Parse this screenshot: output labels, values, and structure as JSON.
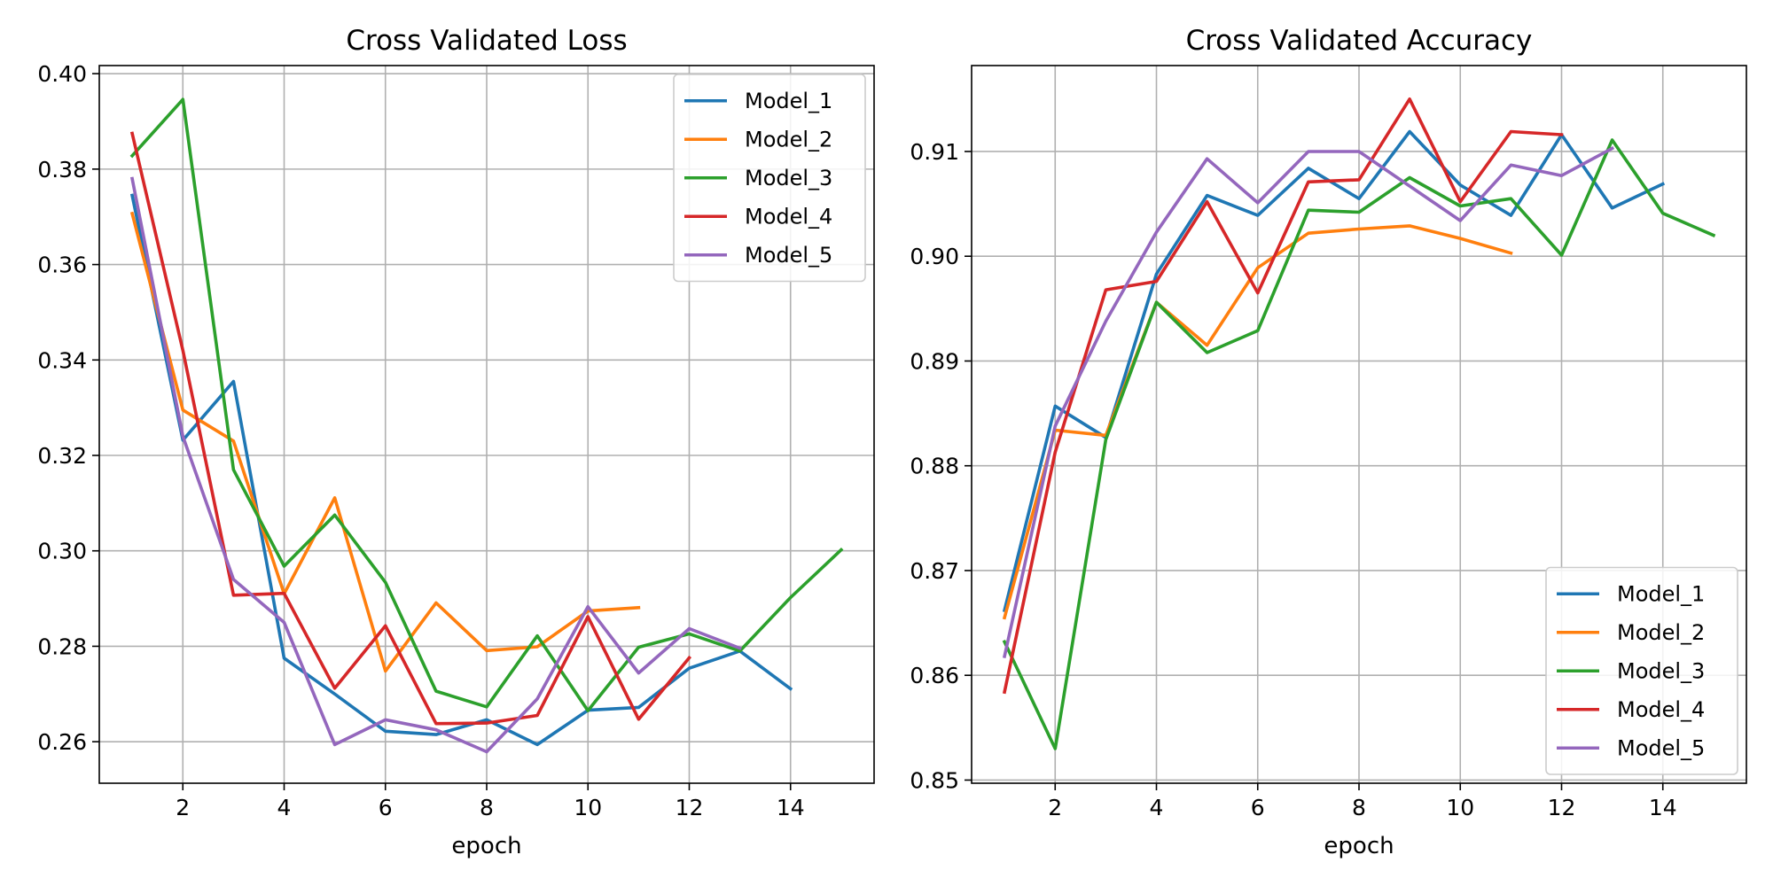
{
  "chart_data": [
    {
      "type": "line",
      "title": "Cross Validated Loss",
      "xlabel": "epoch",
      "ylabel": "",
      "xlim": [
        0.35,
        15.65
      ],
      "ylim": [
        0.2513,
        0.4017
      ],
      "xticks": [
        2,
        4,
        6,
        8,
        10,
        12,
        14
      ],
      "yticks": [
        0.26,
        0.28,
        0.3,
        0.32,
        0.34,
        0.36,
        0.38,
        0.4
      ],
      "ytick_labels": [
        "0.26",
        "0.28",
        "0.30",
        "0.32",
        "0.34",
        "0.36",
        "0.38",
        "0.40"
      ],
      "grid": true,
      "legend_position": "top-right",
      "series": [
        {
          "name": "Model_1",
          "color": "#1f77b4",
          "x": [
            1,
            2,
            3,
            4,
            5,
            6,
            7,
            8,
            9,
            10,
            11,
            12,
            13,
            14
          ],
          "y": [
            0.3745,
            0.3232,
            0.3355,
            0.2775,
            0.27,
            0.2622,
            0.2615,
            0.2646,
            0.2594,
            0.2666,
            0.2672,
            0.2754,
            0.279,
            0.2711
          ]
        },
        {
          "name": "Model_2",
          "color": "#ff7f0e",
          "x": [
            1,
            2,
            3,
            4,
            5,
            6,
            7,
            8,
            9,
            10,
            11
          ],
          "y": [
            0.3707,
            0.3295,
            0.323,
            0.291,
            0.3111,
            0.2748,
            0.2891,
            0.2791,
            0.2799,
            0.2874,
            0.2881
          ]
        },
        {
          "name": "Model_3",
          "color": "#2ca02c",
          "x": [
            1,
            2,
            3,
            4,
            5,
            6,
            7,
            8,
            9,
            10,
            11,
            12,
            13,
            14,
            15
          ],
          "y": [
            0.3828,
            0.3946,
            0.317,
            0.2968,
            0.3075,
            0.2934,
            0.2706,
            0.2673,
            0.2822,
            0.2665,
            0.2798,
            0.2826,
            0.279,
            0.2902,
            0.3002
          ]
        },
        {
          "name": "Model_4",
          "color": "#d62728",
          "x": [
            1,
            2,
            3,
            4,
            5,
            6,
            7,
            8,
            9,
            10,
            11,
            12
          ],
          "y": [
            0.3875,
            0.342,
            0.2907,
            0.2911,
            0.2712,
            0.2843,
            0.2638,
            0.2639,
            0.2655,
            0.2862,
            0.2647,
            0.2776
          ]
        },
        {
          "name": "Model_5",
          "color": "#9467bd",
          "x": [
            1,
            2,
            3,
            4,
            5,
            6,
            7,
            8,
            9,
            10,
            11,
            12,
            13
          ],
          "y": [
            0.378,
            0.324,
            0.294,
            0.285,
            0.2594,
            0.2646,
            0.2625,
            0.2579,
            0.269,
            0.2883,
            0.2744,
            0.2837,
            0.2796
          ]
        }
      ]
    },
    {
      "type": "line",
      "title": "Cross Validated Accuracy",
      "xlabel": "epoch",
      "ylabel": "",
      "xlim": [
        0.35,
        15.65
      ],
      "ylim": [
        0.8497,
        0.9182
      ],
      "xticks": [
        2,
        4,
        6,
        8,
        10,
        12,
        14
      ],
      "yticks": [
        0.85,
        0.86,
        0.87,
        0.88,
        0.89,
        0.9,
        0.91
      ],
      "ytick_labels": [
        "0.85",
        "0.86",
        "0.87",
        "0.88",
        "0.89",
        "0.90",
        "0.91"
      ],
      "grid": true,
      "legend_position": "bottom-right",
      "series": [
        {
          "name": "Model_1",
          "color": "#1f77b4",
          "x": [
            1,
            2,
            3,
            4,
            5,
            6,
            7,
            8,
            9,
            10,
            11,
            12,
            13,
            14
          ],
          "y": [
            0.8662,
            0.8857,
            0.8827,
            0.8983,
            0.9058,
            0.9039,
            0.9084,
            0.9055,
            0.9119,
            0.9068,
            0.9039,
            0.9116,
            0.9046,
            0.9069
          ]
        },
        {
          "name": "Model_2",
          "color": "#ff7f0e",
          "x": [
            1,
            2,
            3,
            4,
            5,
            6,
            7,
            8,
            9,
            10,
            11
          ],
          "y": [
            0.8655,
            0.8834,
            0.8829,
            0.8956,
            0.8915,
            0.8989,
            0.9022,
            0.9026,
            0.9029,
            0.9017,
            0.9003
          ]
        },
        {
          "name": "Model_3",
          "color": "#2ca02c",
          "x": [
            1,
            2,
            3,
            4,
            5,
            6,
            7,
            8,
            9,
            10,
            11,
            12,
            13,
            14,
            15
          ],
          "y": [
            0.8632,
            0.853,
            0.8825,
            0.8956,
            0.8908,
            0.8929,
            0.9044,
            0.9042,
            0.9075,
            0.9048,
            0.9055,
            0.9001,
            0.9111,
            0.9041,
            0.902
          ]
        },
        {
          "name": "Model_4",
          "color": "#d62728",
          "x": [
            1,
            2,
            3,
            4,
            5,
            6,
            7,
            8,
            9,
            10,
            11,
            12
          ],
          "y": [
            0.8584,
            0.8813,
            0.8968,
            0.8976,
            0.9052,
            0.8965,
            0.9071,
            0.9073,
            0.915,
            0.9052,
            0.9119,
            0.9116
          ]
        },
        {
          "name": "Model_5",
          "color": "#9467bd",
          "x": [
            1,
            2,
            3,
            4,
            5,
            6,
            7,
            8,
            9,
            10,
            11,
            12,
            13
          ],
          "y": [
            0.8618,
            0.8838,
            0.8938,
            0.9023,
            0.9093,
            0.9051,
            0.91,
            0.91,
            0.9067,
            0.9034,
            0.9087,
            0.9077,
            0.9103
          ]
        }
      ]
    }
  ]
}
